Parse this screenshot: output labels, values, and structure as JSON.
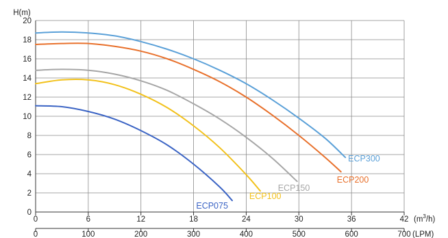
{
  "chart_data": {
    "type": "line",
    "title": "",
    "ylabel": "H(m)",
    "xlabel_top_unit_prefix": "(m",
    "xlabel_top_unit_sup": "3",
    "xlabel_top_unit_suffix": "/h)",
    "xlabel_bottom_unit": "(LPM)",
    "ylim": [
      0,
      20
    ],
    "xlim": [
      0,
      42
    ],
    "y_ticks": [
      "0",
      "2",
      "4",
      "6",
      "8",
      "10",
      "12",
      "14",
      "16",
      "18",
      "20"
    ],
    "x_ticks_top": [
      "0",
      "6",
      "12",
      "18",
      "24",
      "30",
      "36",
      "42"
    ],
    "x_ticks_bottom": [
      "0",
      "100",
      "200",
      "300",
      "400",
      "500",
      "600",
      "700"
    ],
    "grid": true,
    "colors": {
      "ECP075": "#3a63c4",
      "ECP100": "#f2c11a",
      "ECP150": "#a6a6a6",
      "ECP200": "#e8702b",
      "ECP300": "#5aa0d8"
    },
    "series": [
      {
        "name": "ECP075",
        "x": [
          0,
          3,
          6,
          9,
          12,
          15,
          18,
          21,
          22.4
        ],
        "y": [
          11.1,
          11.0,
          10.5,
          9.7,
          8.5,
          7.0,
          5.0,
          2.6,
          1.2
        ]
      },
      {
        "name": "ECP100",
        "x": [
          0,
          3,
          6,
          9,
          12,
          15,
          18,
          21,
          24,
          25.6
        ],
        "y": [
          13.4,
          13.8,
          13.8,
          13.3,
          12.3,
          10.9,
          9.0,
          6.7,
          3.9,
          2.2
        ]
      },
      {
        "name": "ECP150",
        "x": [
          0,
          3,
          6,
          9,
          12,
          15,
          18,
          21,
          24,
          27,
          29.8
        ],
        "y": [
          14.8,
          14.9,
          14.8,
          14.4,
          13.7,
          12.7,
          11.3,
          9.7,
          7.8,
          5.6,
          3.2
        ]
      },
      {
        "name": "ECP200",
        "x": [
          0,
          3,
          6,
          9,
          12,
          15,
          18,
          21,
          24,
          27,
          30,
          33,
          34.8
        ],
        "y": [
          17.5,
          17.6,
          17.6,
          17.3,
          16.8,
          16.0,
          14.9,
          13.6,
          12.0,
          10.1,
          8.0,
          5.7,
          4.2
        ]
      },
      {
        "name": "ECP300",
        "x": [
          0,
          3,
          6,
          9,
          12,
          15,
          18,
          21,
          24,
          27,
          30,
          33,
          35.3
        ],
        "y": [
          18.7,
          18.8,
          18.7,
          18.4,
          17.8,
          17.0,
          16.0,
          14.8,
          13.4,
          11.7,
          9.8,
          7.7,
          5.7
        ]
      }
    ]
  }
}
